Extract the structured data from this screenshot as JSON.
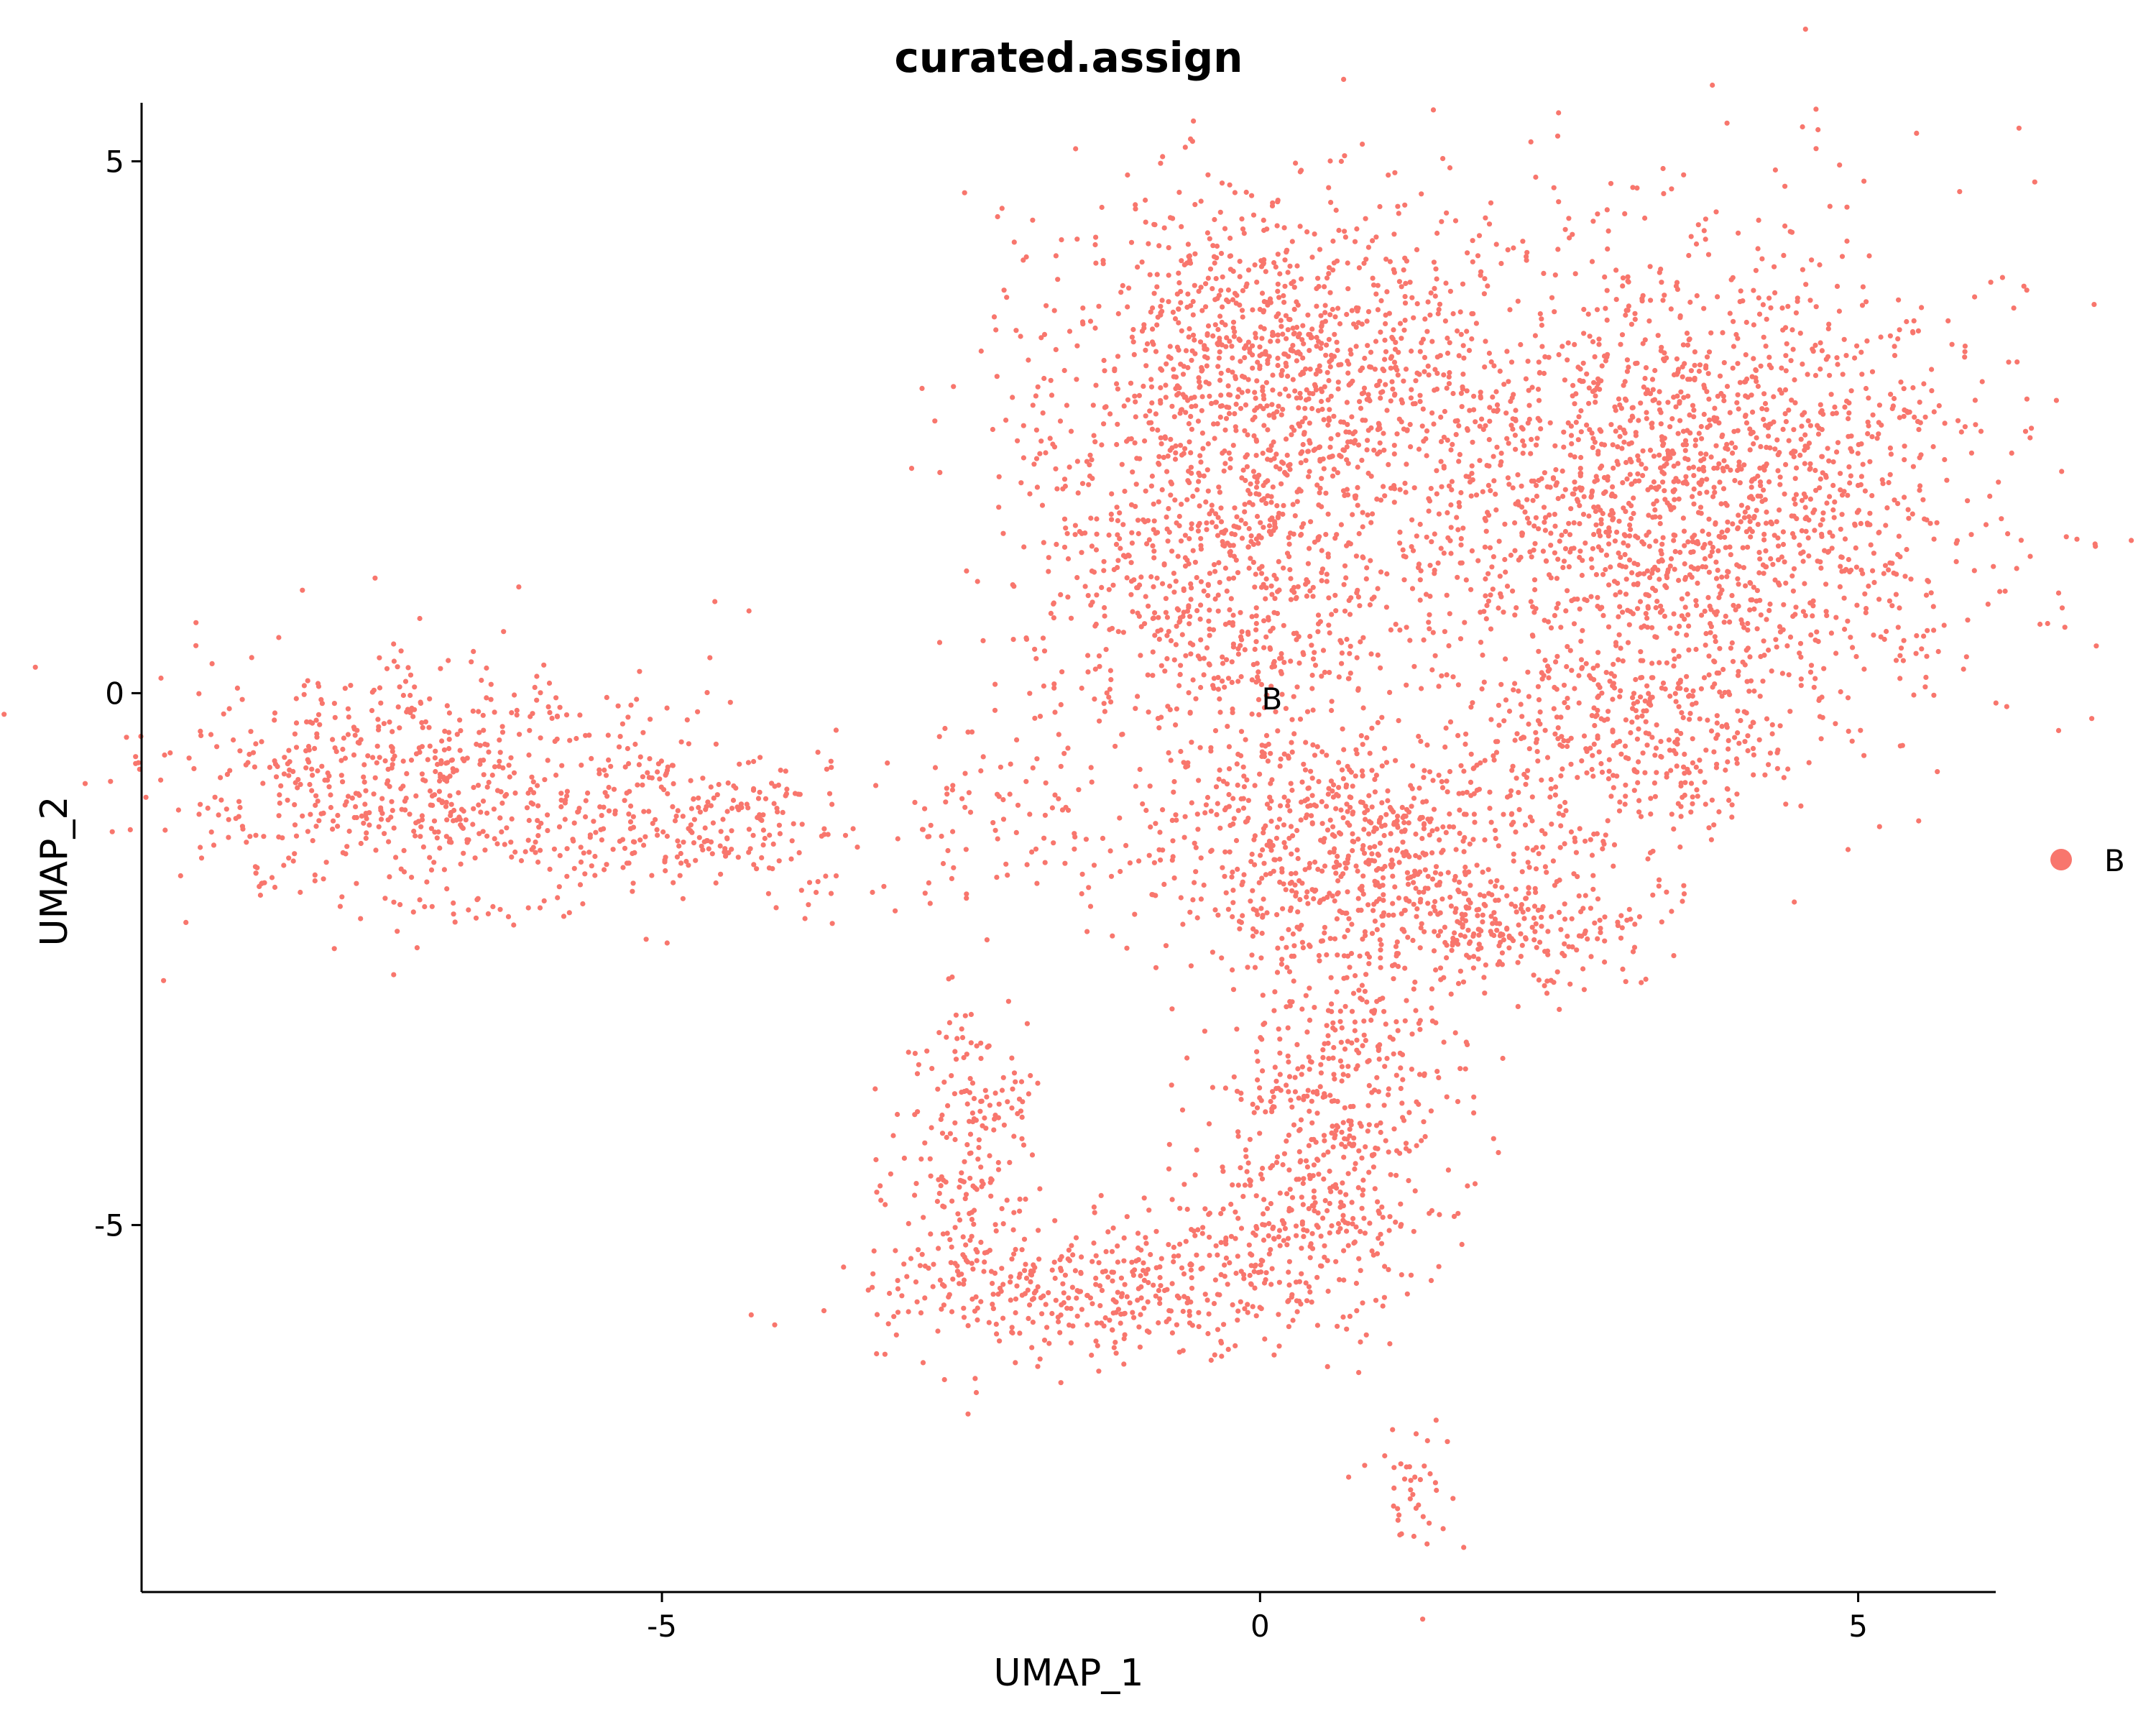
{
  "chart_data": {
    "type": "scatter",
    "title": "curated.assign",
    "xlabel": "UMAP_1",
    "ylabel": "UMAP_2",
    "xlim": [
      -9.35,
      6.15
    ],
    "ylim": [
      -8.45,
      5.55
    ],
    "xticks": [
      -5,
      0,
      5
    ],
    "xtick_labels": [
      "-5",
      "0",
      "5"
    ],
    "yticks": [
      -5,
      0,
      5
    ],
    "ytick_labels": [
      "-5",
      "0",
      "5"
    ],
    "grid": false,
    "legend": {
      "position": "right",
      "entries": [
        {
          "label": "B",
          "color": "#F8766D"
        }
      ]
    },
    "annotations": [
      {
        "text": "B",
        "x": 0.1,
        "y": -0.05
      }
    ],
    "point_color": "#F8766D",
    "series": [
      {
        "name": "B",
        "color": "#F8766D",
        "regions": [
          {
            "cx": -7.0,
            "cy": -0.9,
            "sx": 1.1,
            "sy": 0.6,
            "n": 700
          },
          {
            "cx": -4.6,
            "cy": -1.25,
            "sx": 0.6,
            "sy": 0.35,
            "n": 180
          },
          {
            "cx": -3.0,
            "cy": -1.3,
            "sx": 0.7,
            "sy": 0.45,
            "n": 50
          },
          {
            "cx": -1.9,
            "cy": -0.8,
            "sx": 0.55,
            "sy": 0.55,
            "n": 60
          },
          {
            "cx": 0.1,
            "cy": 3.1,
            "sx": 0.95,
            "sy": 0.9,
            "n": 1100
          },
          {
            "cx": -0.3,
            "cy": 1.0,
            "sx": 0.85,
            "sy": 0.8,
            "n": 700
          },
          {
            "cx": 3.6,
            "cy": 1.9,
            "sx": 1.2,
            "sy": 1.2,
            "n": 1900
          },
          {
            "cx": 3.0,
            "cy": -0.5,
            "sx": 0.8,
            "sy": 0.45,
            "n": 300
          },
          {
            "cx": 0.7,
            "cy": -1.4,
            "sx": 0.95,
            "sy": 0.55,
            "n": 700
          },
          {
            "cx": 2.0,
            "cy": -2.2,
            "sx": 0.8,
            "sy": 0.3,
            "n": 250
          },
          {
            "cx": 0.6,
            "cy": -3.5,
            "sx": 0.55,
            "sy": 0.6,
            "n": 300
          },
          {
            "cx": -1.3,
            "cy": -5.6,
            "sx": 1.0,
            "sy": 0.35,
            "n": 450
          },
          {
            "cx": -2.4,
            "cy": -4.3,
            "sx": 0.3,
            "sy": 0.7,
            "n": 200
          },
          {
            "cx": 0.4,
            "cy": -4.8,
            "sx": 0.45,
            "sy": 0.5,
            "n": 250
          },
          {
            "cx": 1.25,
            "cy": -7.45,
            "sx": 0.18,
            "sy": 0.28,
            "n": 40
          }
        ]
      }
    ]
  }
}
